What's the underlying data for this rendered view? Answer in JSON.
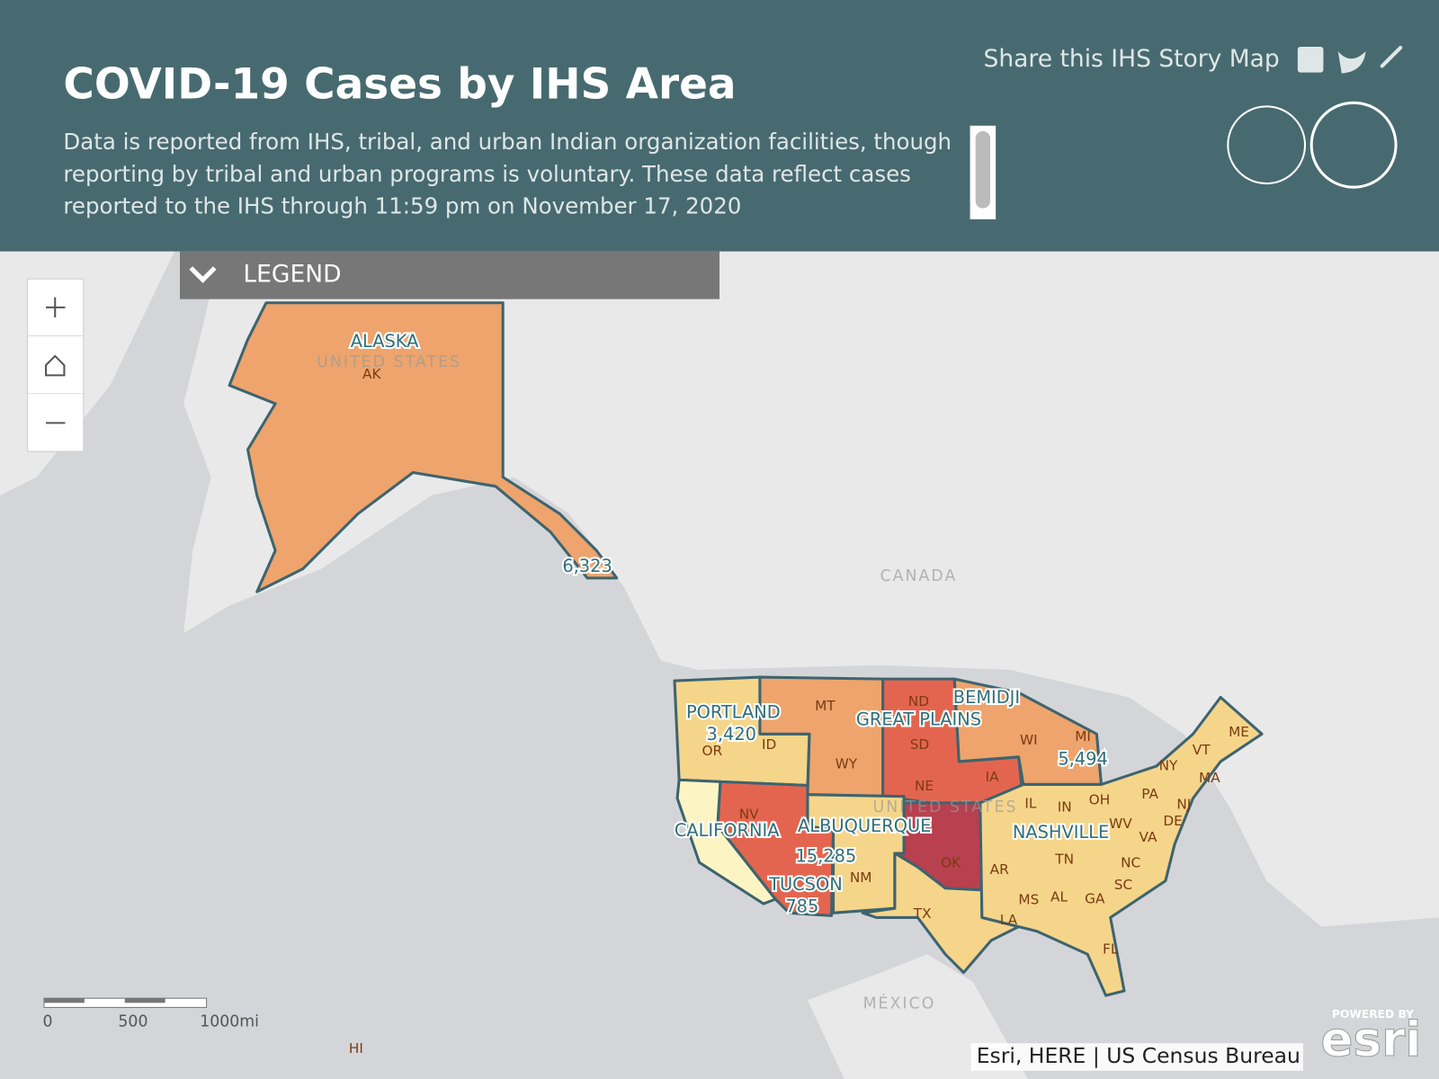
{
  "header": {
    "title": "COVID-19 Cases by IHS Area",
    "description": [
      "Data is reported from IHS, tribal, and urban Indian organization facilities, though",
      "reporting by tribal and urban programs is voluntary. These data reflect cases",
      "reported to the IHS through 11:59 pm on November 17, 2020"
    ],
    "share": "Share this IHS Story Map"
  },
  "legend": {
    "title": "LEGEND"
  },
  "map": {
    "countries": [
      "UNITED STATES",
      "CANADA",
      "UNITED STATES",
      "MÉXICO"
    ],
    "areas": [
      {
        "name": "ALASKA",
        "cases": "6,323"
      },
      {
        "name": "PORTLAND",
        "cases": "3,420"
      },
      {
        "name": "CALIFORNIA"
      },
      {
        "name": "BEMIDJI",
        "cases": "5,494"
      },
      {
        "name": "GREAT PLAINS"
      },
      {
        "name": "ALBUQUERQUE",
        "cases": "15,285"
      },
      {
        "name": "TUCSON",
        "cases": "785"
      },
      {
        "name": "NASHVILLE"
      }
    ],
    "states": [
      "AK",
      "OR",
      "ID",
      "MT",
      "WY",
      "ND",
      "SD",
      "NE",
      "IA",
      "WI",
      "MI",
      "NV",
      "NM",
      "TX",
      "OK",
      "AR",
      "MS",
      "AL",
      "GA",
      "LA",
      "FL",
      "TN",
      "NC",
      "SC",
      "VA",
      "WV",
      "OH",
      "IN",
      "IL",
      "PA",
      "NY",
      "VT",
      "ME",
      "MA",
      "NJ",
      "DE",
      "HI"
    ],
    "scale_labels": [
      "0",
      "500",
      "1000mi"
    ],
    "attribution": "Esri, HERE | US Census Bureau",
    "powered_by": "POWERED BY",
    "brand": "esri"
  }
}
